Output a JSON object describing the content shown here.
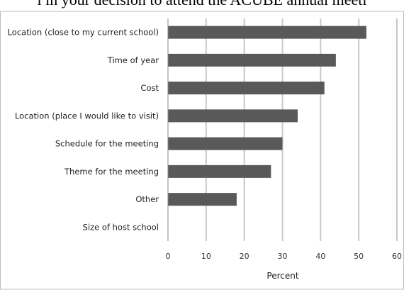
{
  "heading_cut": "l in your decision to attend the ACUBE annual meeti",
  "chart_data": {
    "type": "bar",
    "orientation": "horizontal",
    "title": "l in your decision to attend the ACUBE annual meeti",
    "xlabel": "Percent",
    "ylabel": "",
    "categories": [
      "Location (close to my current school)",
      "Time of year",
      "Cost",
      "Location (place I would like to visit)",
      "Schedule for the meeting",
      "Theme for the meeting",
      "Other",
      "Size of host school"
    ],
    "values": [
      52,
      44,
      41,
      34,
      30,
      27,
      18,
      0
    ],
    "xlim": [
      0,
      60
    ],
    "xticks": [
      "0",
      "10",
      "20",
      "30",
      "40",
      "50",
      "60"
    ],
    "grid": true,
    "bar_color": "#595959",
    "grid_color": "#c8c8c8"
  }
}
